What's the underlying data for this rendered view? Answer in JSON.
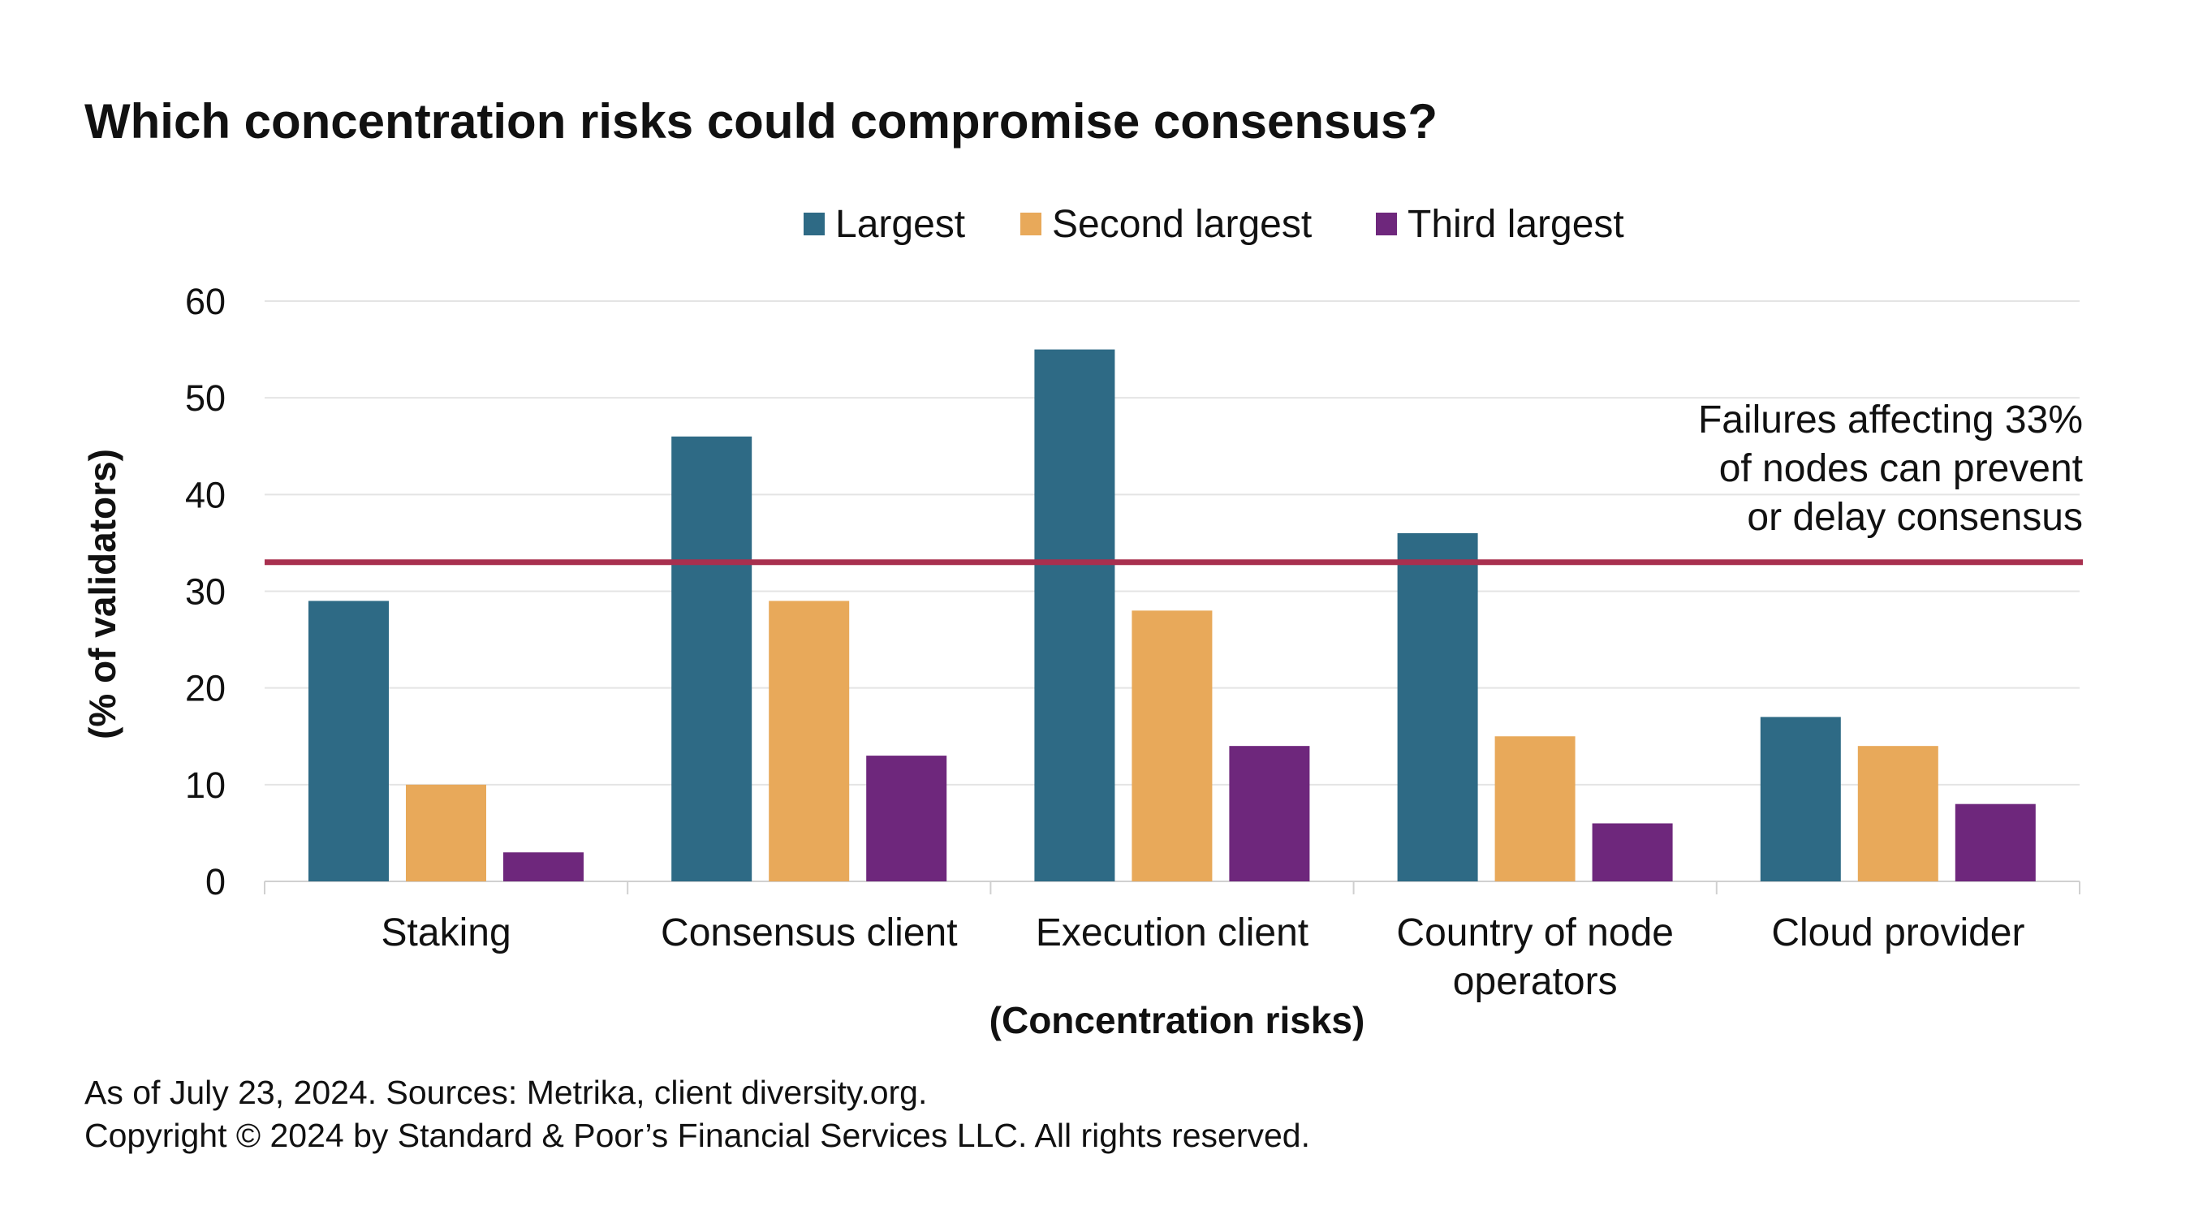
{
  "chart_data": {
    "type": "bar",
    "title": "Which concentration risks could compromise consensus?",
    "xlabel": "(Concentration risks)",
    "ylabel": "(% of validators)",
    "ylim": [
      0,
      60
    ],
    "yticks": [
      "0",
      "10",
      "20",
      "30",
      "40",
      "50",
      "60"
    ],
    "grid": true,
    "legend_placement": "top-center",
    "categories": [
      "Staking",
      "Consensus client",
      "Execution client",
      "Country of node operators",
      "Cloud provider"
    ],
    "series": [
      {
        "name": "Largest",
        "color": "#2e6a85",
        "values": [
          29,
          46,
          55,
          36,
          17
        ]
      },
      {
        "name": "Second largest",
        "color": "#e8a95a",
        "values": [
          10,
          29,
          28,
          15,
          14
        ]
      },
      {
        "name": "Third largest",
        "color": "#6e277c",
        "values": [
          3,
          13,
          14,
          6,
          8
        ]
      }
    ],
    "reference_line": {
      "value": 33,
      "color": "#a8304f",
      "annotation": [
        "Failures affecting 33%",
        "of nodes can prevent",
        "or delay consensus"
      ]
    }
  },
  "footnotes": [
    "As of July 23, 2024. Sources: Metrika, client diversity.org.",
    "Copyright © 2024 by Standard & Poor’s Financial Services LLC. All rights reserved."
  ]
}
